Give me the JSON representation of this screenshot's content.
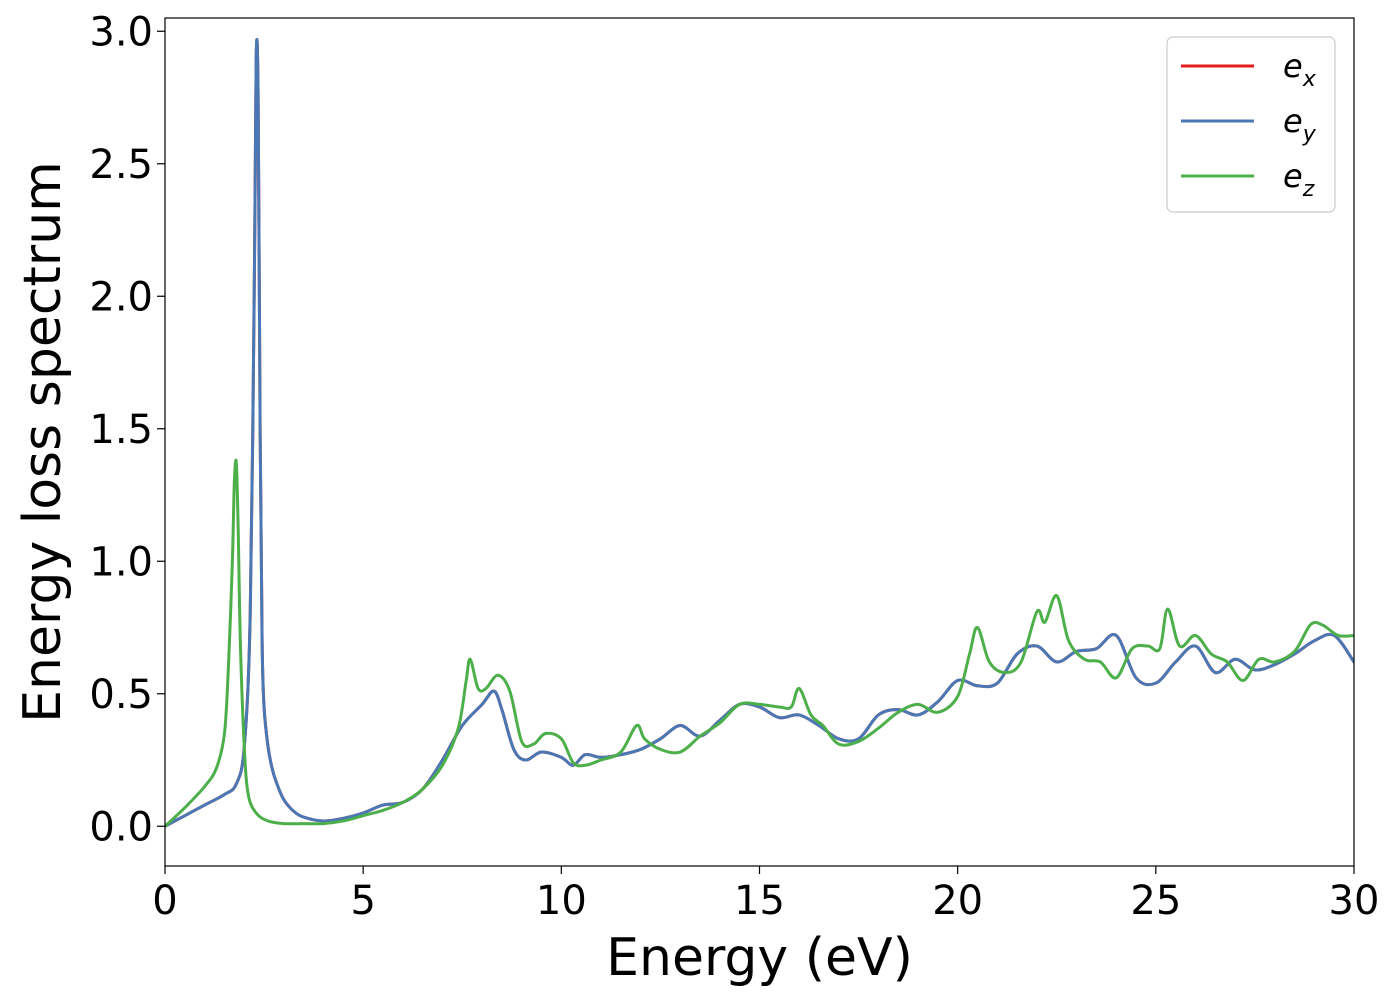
{
  "chart_data": {
    "type": "line",
    "xlabel": "Energy (eV)",
    "ylabel": "Energy loss spectrum",
    "xlim": [
      0,
      30
    ],
    "ylim": [
      -0.15,
      3.05
    ],
    "xticks": [
      0,
      5,
      10,
      15,
      20,
      25,
      30
    ],
    "xtick_labels": [
      "0",
      "5",
      "10",
      "15",
      "20",
      "25",
      "30"
    ],
    "yticks": [
      0.0,
      0.5,
      1.0,
      1.5,
      2.0,
      2.5,
      3.0
    ],
    "ytick_labels": [
      "0.0",
      "0.5",
      "1.0",
      "1.5",
      "2.0",
      "2.5",
      "3.0"
    ],
    "grid": false,
    "legend_position": "top-right",
    "series": [
      {
        "name": "e_x",
        "legend_base": "e",
        "legend_sub": "x",
        "color": "#e41a1c",
        "x": [
          0,
          0.5,
          1.0,
          1.5,
          1.8,
          2.0,
          2.15,
          2.25,
          2.3,
          2.35,
          2.4,
          2.45,
          2.5,
          2.6,
          2.7,
          2.8,
          3.0,
          3.3,
          3.6,
          4.0,
          4.5,
          5.0,
          5.5,
          6.0,
          6.5,
          7.0,
          7.5,
          8.0,
          8.3,
          8.5,
          8.8,
          9.1,
          9.5,
          10.0,
          10.3,
          10.6,
          11.0,
          11.5,
          12.0,
          12.5,
          13.0,
          13.5,
          14.0,
          14.5,
          15.0,
          15.5,
          16.0,
          16.5,
          17.0,
          17.5,
          18.0,
          18.5,
          19.0,
          19.5,
          20.0,
          20.5,
          21.0,
          21.5,
          22.0,
          22.5,
          23.0,
          23.5,
          24.0,
          24.5,
          25.0,
          25.5,
          26.0,
          26.5,
          27.0,
          27.5,
          28.0,
          28.5,
          29.0,
          29.5,
          30.0
        ],
        "y": [
          0.0,
          0.04,
          0.08,
          0.12,
          0.16,
          0.3,
          0.8,
          2.0,
          2.9,
          2.75,
          1.5,
          0.7,
          0.45,
          0.3,
          0.22,
          0.17,
          0.1,
          0.05,
          0.03,
          0.02,
          0.03,
          0.05,
          0.08,
          0.09,
          0.14,
          0.25,
          0.38,
          0.46,
          0.51,
          0.44,
          0.29,
          0.25,
          0.28,
          0.26,
          0.23,
          0.27,
          0.26,
          0.27,
          0.29,
          0.33,
          0.38,
          0.34,
          0.4,
          0.46,
          0.45,
          0.41,
          0.42,
          0.38,
          0.33,
          0.33,
          0.42,
          0.44,
          0.42,
          0.47,
          0.55,
          0.53,
          0.54,
          0.65,
          0.68,
          0.62,
          0.66,
          0.67,
          0.72,
          0.56,
          0.54,
          0.62,
          0.68,
          0.58,
          0.63,
          0.59,
          0.61,
          0.65,
          0.7,
          0.72,
          0.62
        ]
      },
      {
        "name": "e_y",
        "legend_base": "e",
        "legend_sub": "y",
        "color": "#4a78b4",
        "x": [
          0,
          0.5,
          1.0,
          1.5,
          1.8,
          2.0,
          2.15,
          2.25,
          2.3,
          2.35,
          2.4,
          2.45,
          2.5,
          2.6,
          2.7,
          2.8,
          3.0,
          3.3,
          3.6,
          4.0,
          4.5,
          5.0,
          5.5,
          6.0,
          6.5,
          7.0,
          7.5,
          8.0,
          8.3,
          8.5,
          8.8,
          9.1,
          9.5,
          10.0,
          10.3,
          10.6,
          11.0,
          11.5,
          12.0,
          12.5,
          13.0,
          13.5,
          14.0,
          14.5,
          15.0,
          15.5,
          16.0,
          16.5,
          17.0,
          17.5,
          18.0,
          18.5,
          19.0,
          19.5,
          20.0,
          20.5,
          21.0,
          21.5,
          22.0,
          22.5,
          23.0,
          23.5,
          24.0,
          24.5,
          25.0,
          25.5,
          26.0,
          26.5,
          27.0,
          27.5,
          28.0,
          28.5,
          29.0,
          29.5,
          30.0
        ],
        "y": [
          0.0,
          0.04,
          0.08,
          0.12,
          0.16,
          0.3,
          0.8,
          2.0,
          2.9,
          2.75,
          1.5,
          0.7,
          0.45,
          0.3,
          0.22,
          0.17,
          0.1,
          0.05,
          0.03,
          0.02,
          0.03,
          0.05,
          0.08,
          0.09,
          0.14,
          0.25,
          0.38,
          0.46,
          0.51,
          0.44,
          0.29,
          0.25,
          0.28,
          0.26,
          0.23,
          0.27,
          0.26,
          0.27,
          0.29,
          0.33,
          0.38,
          0.34,
          0.4,
          0.46,
          0.45,
          0.41,
          0.42,
          0.38,
          0.33,
          0.33,
          0.42,
          0.44,
          0.42,
          0.47,
          0.55,
          0.53,
          0.54,
          0.65,
          0.68,
          0.62,
          0.66,
          0.67,
          0.72,
          0.56,
          0.54,
          0.62,
          0.68,
          0.58,
          0.63,
          0.59,
          0.61,
          0.65,
          0.7,
          0.72,
          0.62
        ]
      },
      {
        "name": "e_z",
        "legend_base": "e",
        "legend_sub": "z",
        "color": "#4daf4a",
        "x": [
          0,
          0.5,
          1.0,
          1.3,
          1.5,
          1.6,
          1.7,
          1.75,
          1.8,
          1.85,
          1.9,
          2.0,
          2.1,
          2.3,
          2.6,
          3.0,
          3.5,
          4.0,
          4.5,
          5.0,
          5.5,
          6.0,
          6.5,
          7.0,
          7.4,
          7.6,
          7.7,
          7.9,
          8.1,
          8.4,
          8.7,
          9.0,
          9.3,
          9.6,
          10.0,
          10.3,
          10.6,
          11.0,
          11.5,
          11.9,
          12.1,
          12.5,
          13.0,
          13.5,
          14.0,
          14.5,
          15.0,
          15.5,
          15.8,
          16.0,
          16.3,
          16.6,
          17.0,
          17.5,
          18.0,
          18.5,
          19.0,
          19.5,
          20.0,
          20.3,
          20.5,
          20.8,
          21.2,
          21.6,
          22.0,
          22.2,
          22.5,
          22.8,
          23.2,
          23.6,
          24.0,
          24.4,
          24.8,
          25.1,
          25.3,
          25.6,
          26.0,
          26.4,
          26.8,
          27.2,
          27.6,
          28.0,
          28.5,
          28.9,
          29.2,
          29.6,
          30.0
        ],
        "y": [
          0.0,
          0.07,
          0.15,
          0.22,
          0.35,
          0.6,
          1.0,
          1.3,
          1.37,
          1.1,
          0.7,
          0.3,
          0.12,
          0.05,
          0.02,
          0.01,
          0.01,
          0.01,
          0.02,
          0.04,
          0.06,
          0.09,
          0.14,
          0.23,
          0.37,
          0.55,
          0.63,
          0.52,
          0.52,
          0.57,
          0.51,
          0.32,
          0.31,
          0.35,
          0.33,
          0.24,
          0.23,
          0.25,
          0.28,
          0.38,
          0.33,
          0.29,
          0.28,
          0.34,
          0.39,
          0.46,
          0.46,
          0.45,
          0.45,
          0.52,
          0.42,
          0.38,
          0.31,
          0.32,
          0.37,
          0.43,
          0.46,
          0.43,
          0.49,
          0.65,
          0.75,
          0.62,
          0.58,
          0.62,
          0.81,
          0.77,
          0.87,
          0.7,
          0.63,
          0.62,
          0.56,
          0.67,
          0.68,
          0.67,
          0.82,
          0.68,
          0.72,
          0.65,
          0.62,
          0.55,
          0.63,
          0.62,
          0.66,
          0.76,
          0.76,
          0.72,
          0.72
        ]
      }
    ]
  }
}
